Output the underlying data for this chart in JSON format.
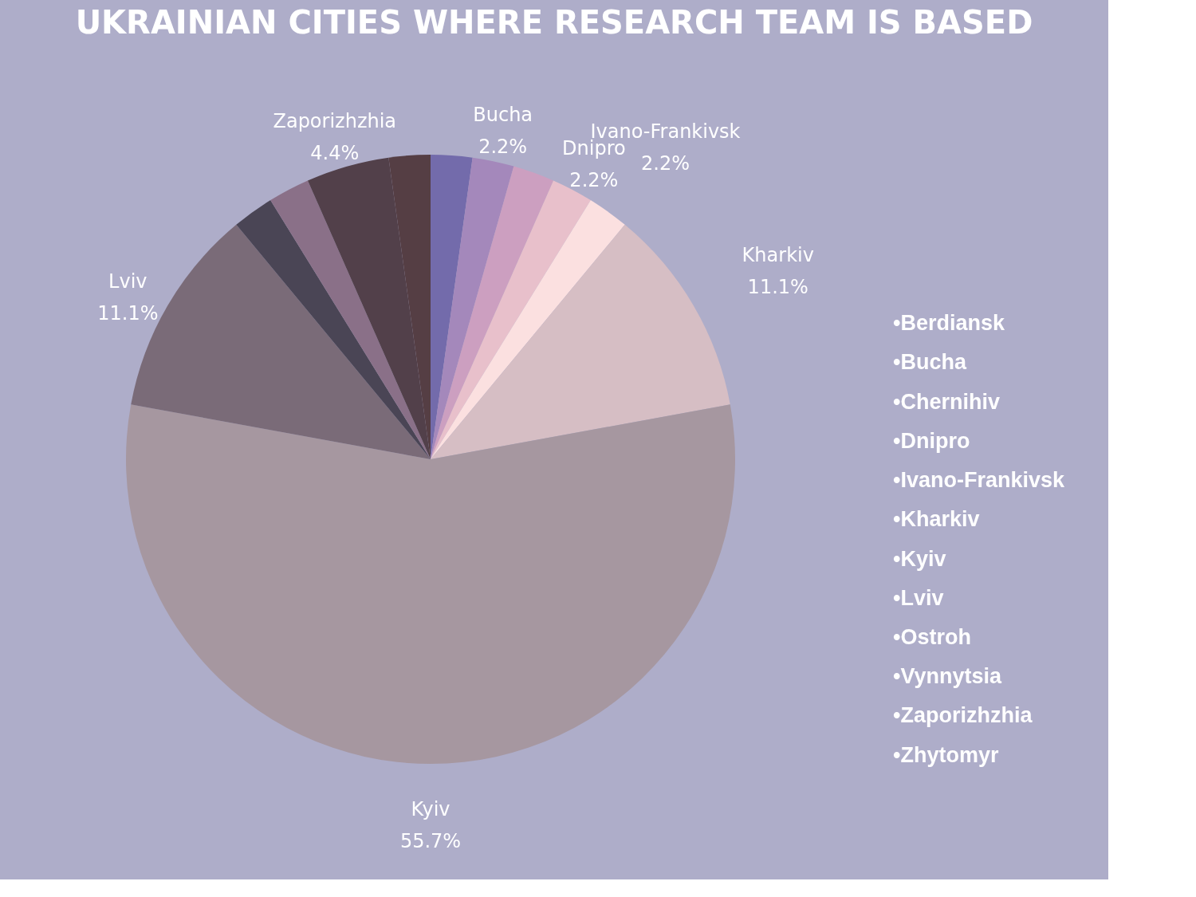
{
  "chart_data": {
    "type": "pie",
    "title": "UKRAINIAN CITIES WHERE RESEARCH TEAM IS BASED",
    "categories": [
      null,
      "Bucha",
      null,
      "Dnipro",
      "Ivano-Frankivsk",
      "Kharkiv",
      "Kyiv",
      "Lviv",
      null,
      null,
      "Zaporizhzhia",
      null
    ],
    "values": [
      2.2,
      2.2,
      2.2,
      2.2,
      2.2,
      11.1,
      55.7,
      11.1,
      2.2,
      2.2,
      4.4,
      2.2
    ],
    "value_labels": [
      null,
      "2.2%",
      null,
      "2.2%",
      "2.2%",
      "11.1%",
      "55.7%",
      "11.1%",
      null,
      null,
      "4.4%",
      null
    ],
    "colors": [
      "#736bab",
      "#a488bb",
      "#cc9fc0",
      "#e8c0cb",
      "#fbe0e0",
      "#d6bec4",
      "#a697a0",
      "#7a6b78",
      "#4a4555",
      "#8a7088",
      "#52404a",
      "#553e44"
    ],
    "annotations": [
      "•Berdiansk",
      "•Bucha",
      "•Chernihiv",
      "•Dnipro",
      "•Ivano-Frankivsk",
      "•Kharkiv",
      "•Kyiv",
      "•Lviv",
      "•Ostroh",
      "•Vynnytsia",
      "•Zaporizhzhia",
      "•Zhytomyr"
    ]
  }
}
